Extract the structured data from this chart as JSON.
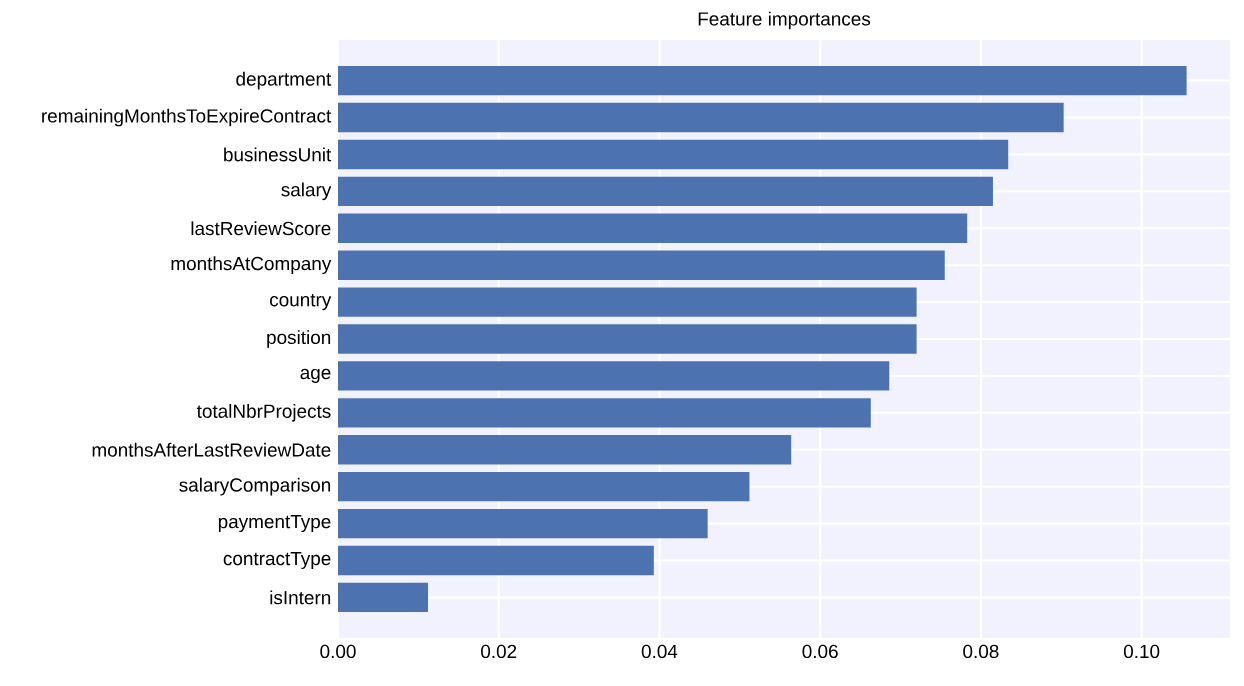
{
  "chart_data": {
    "type": "bar",
    "orientation": "horizontal",
    "title": "Feature importances",
    "categories": [
      "department",
      "remainingMonthsToExpireContract",
      "businessUnit",
      "salary",
      "lastReviewScore",
      "monthsAtCompany",
      "country",
      "position",
      "age",
      "totalNbrProjects",
      "monthsAfterLastReviewDate",
      "salaryComparison",
      "paymentType",
      "contractType",
      "isIntern"
    ],
    "values": [
      0.1056,
      0.0903,
      0.0834,
      0.0815,
      0.0783,
      0.0755,
      0.072,
      0.072,
      0.0686,
      0.0663,
      0.0564,
      0.0512,
      0.046,
      0.0393,
      0.0112
    ],
    "color": "#4c72b0",
    "xlim": [
      0,
      0.111
    ],
    "xticks": [
      {
        "value": 0,
        "label": "0.00"
      },
      {
        "value": 0.02,
        "label": "0.02"
      },
      {
        "value": 0.04,
        "label": "0.04"
      },
      {
        "value": 0.06,
        "label": "0.06"
      },
      {
        "value": 0.08,
        "label": "0.08"
      },
      {
        "value": 0.1,
        "label": "0.10"
      }
    ],
    "grid": true
  }
}
